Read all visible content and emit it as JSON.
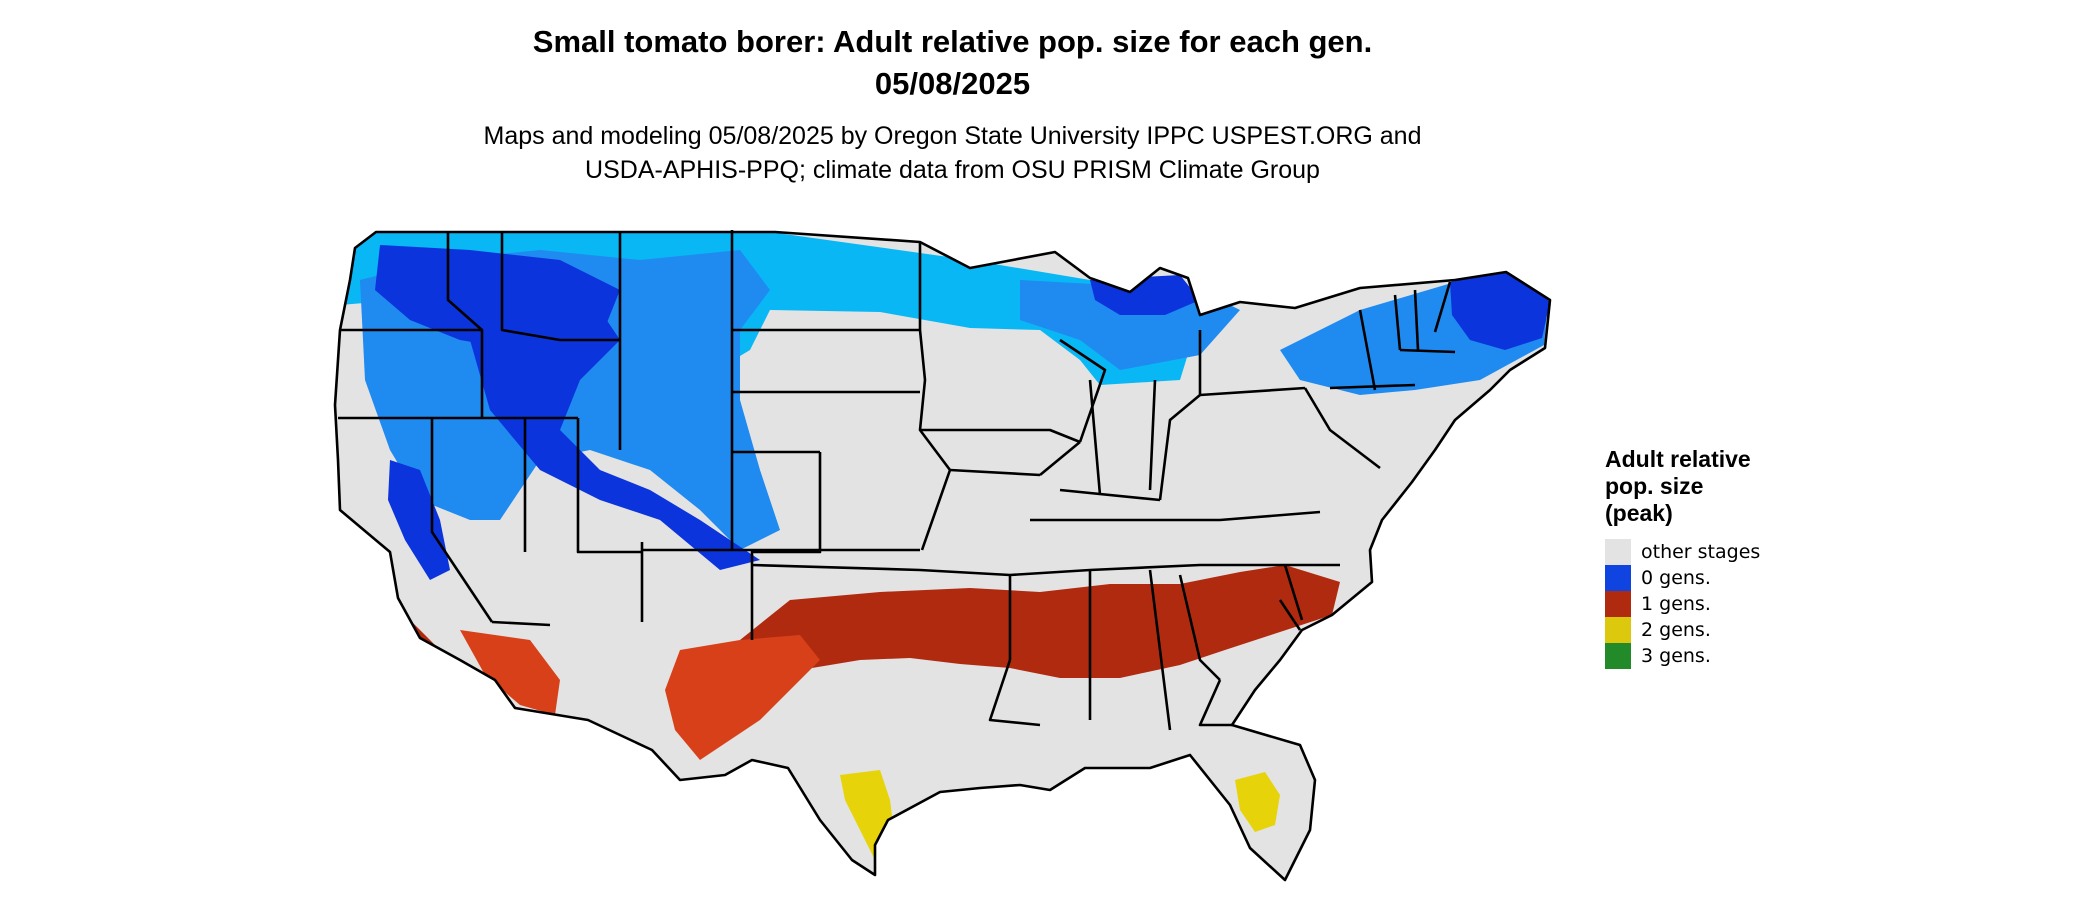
{
  "title": {
    "line1": "Small tomato borer: Adult relative pop. size for each gen.",
    "line2": "05/08/2025"
  },
  "subtitle": {
    "line1": "Maps and modeling 05/08/2025 by Oregon State University IPPC USPEST.ORG and",
    "line2": "USDA-APHIS-PPQ; climate data from OSU PRISM Climate Group"
  },
  "legend": {
    "title_line1": "Adult relative",
    "title_line2": "pop. size",
    "title_line3": "(peak)",
    "items": [
      {
        "label": "other stages",
        "color": "#e3e3e3"
      },
      {
        "label": "0 gens.",
        "color": "#1044e0"
      },
      {
        "label": "1 gens.",
        "color": "#b02a10"
      },
      {
        "label": "2 gens.",
        "color": "#dcc80c"
      },
      {
        "label": "3 gens.",
        "color": "#238a2a"
      }
    ]
  },
  "colors": {
    "land": "#e3e3e3",
    "border": "#000000",
    "cold_light": "#09b7f5",
    "cold_mid": "#1f8af0",
    "cold_dark": "#0b34dc",
    "one_gen": "#b02a10",
    "one_gen_light": "#d8401a",
    "two_gens": "#e6d30a"
  }
}
